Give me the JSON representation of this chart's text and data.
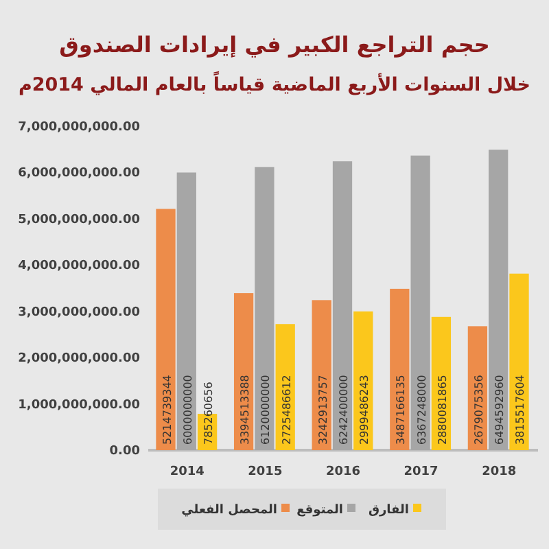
{
  "chart_data": {
    "type": "bar",
    "title": "حجم التراجع الكبير في إيرادات الصندوق",
    "subtitle": "خلال السنوات الأربع الماضية قياساً بالعام المالي 2014م",
    "categories": [
      "2014",
      "2015",
      "2016",
      "2017",
      "2018"
    ],
    "series": [
      {
        "name": "المحصل الفعلي",
        "color": "#ed8c4a",
        "values": [
          5214739344,
          3394513388,
          3242913757,
          3487166135,
          2679075356
        ]
      },
      {
        "name": "المتوقع",
        "color": "#a6a6a6",
        "values": [
          6000000000,
          6120000000,
          6242400000,
          6367248000,
          6494592960
        ]
      },
      {
        "name": "الفارق",
        "color": "#fbc71c",
        "values": [
          785260656,
          2725486612,
          2999486243,
          2880081865,
          3815517604
        ]
      }
    ],
    "ylim": [
      0,
      7000000000
    ],
    "yticks": [
      {
        "value": 0,
        "label": "0.00"
      },
      {
        "value": 1000000000,
        "label": "1,000,000,000.00"
      },
      {
        "value": 2000000000,
        "label": "2,000,000,000.00"
      },
      {
        "value": 3000000000,
        "label": "3,000,000,000.00"
      },
      {
        "value": 4000000000,
        "label": "4,000,000,000.00"
      },
      {
        "value": 5000000000,
        "label": "5,000,000,000.00"
      },
      {
        "value": 6000000000,
        "label": "6,000,000,000.00"
      },
      {
        "value": 7000000000,
        "label": "7,000,000,000.00"
      }
    ],
    "data_labels": true,
    "legend": "bottom"
  }
}
